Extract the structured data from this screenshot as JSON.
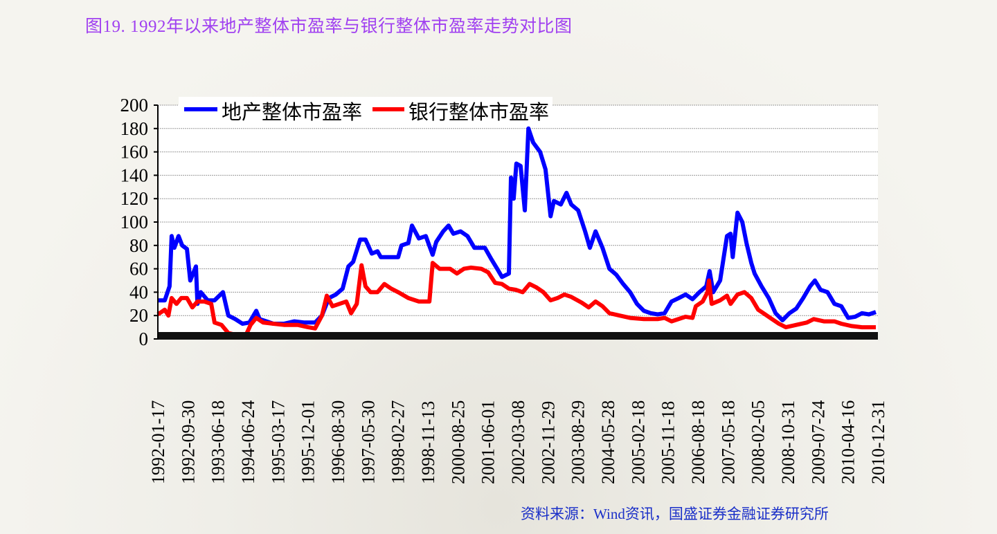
{
  "title": "图19. 1992年以来地产整体市盈率与银行整体市盈率走势对比图",
  "source": "资料来源：Wind资讯，国盛证券金融证券研究所",
  "chart_data": {
    "type": "line",
    "title": "图19. 1992年以来地产整体市盈率与银行整体市盈率走势对比图",
    "xlabel": "",
    "ylabel": "",
    "ylim": [
      0,
      200
    ],
    "yticks": [
      "0",
      "20",
      "40",
      "60",
      "80",
      "100",
      "120",
      "140",
      "160",
      "180",
      "200"
    ],
    "grid": true,
    "legend_position": "top",
    "x_unit": "category tick index (0 = first tick label, 24 = last)",
    "categories": [
      "1992-01-17",
      "1992-09-30",
      "1993-06-18",
      "1994-06-24",
      "1995-03-17",
      "1995-12-01",
      "1996-08-30",
      "1997-05-30",
      "1998-02-27",
      "1998-11-13",
      "2000-08-25",
      "2001-06-01",
      "2002-03-08",
      "2002-11-29",
      "2003-08-29",
      "2004-05-28",
      "2005-02-18",
      "2005-11-18",
      "2006-08-18",
      "2007-05-18",
      "2008-02-05",
      "2008-10-31",
      "2009-07-24",
      "2010-04-16",
      "2010-12-31"
    ],
    "series": [
      {
        "name": "地产整体市盈率",
        "color": "#0000ff",
        "points": [
          [
            0,
            33
          ],
          [
            0.23,
            33
          ],
          [
            0.39,
            45
          ],
          [
            0.46,
            88
          ],
          [
            0.55,
            78
          ],
          [
            0.69,
            88
          ],
          [
            0.81,
            80
          ],
          [
            0.97,
            77
          ],
          [
            1.08,
            50
          ],
          [
            1.27,
            62
          ],
          [
            1.32,
            30
          ],
          [
            1.43,
            40
          ],
          [
            1.66,
            33
          ],
          [
            1.89,
            33
          ],
          [
            2.17,
            40
          ],
          [
            2.35,
            20
          ],
          [
            2.58,
            17
          ],
          [
            2.82,
            13
          ],
          [
            3.05,
            14
          ],
          [
            3.28,
            24
          ],
          [
            3.39,
            17
          ],
          [
            3.62,
            15
          ],
          [
            3.85,
            13
          ],
          [
            4.2,
            13
          ],
          [
            4.55,
            15
          ],
          [
            4.89,
            14
          ],
          [
            5.24,
            14
          ],
          [
            5.47,
            20
          ],
          [
            5.7,
            35
          ],
          [
            5.93,
            38
          ],
          [
            6.16,
            43
          ],
          [
            6.35,
            62
          ],
          [
            6.51,
            66
          ],
          [
            6.74,
            85
          ],
          [
            6.92,
            85
          ],
          [
            7.13,
            73
          ],
          [
            7.32,
            75
          ],
          [
            7.43,
            70
          ],
          [
            7.66,
            70
          ],
          [
            8.01,
            70
          ],
          [
            8.12,
            80
          ],
          [
            8.35,
            82
          ],
          [
            8.47,
            97
          ],
          [
            8.7,
            86
          ],
          [
            8.93,
            88
          ],
          [
            9.16,
            72
          ],
          [
            9.28,
            83
          ],
          [
            9.51,
            92
          ],
          [
            9.69,
            97
          ],
          [
            9.85,
            90
          ],
          [
            10.09,
            92
          ],
          [
            10.32,
            88
          ],
          [
            10.55,
            78
          ],
          [
            10.9,
            78
          ],
          [
            11.12,
            68
          ],
          [
            11.31,
            60
          ],
          [
            11.47,
            53
          ],
          [
            11.7,
            56
          ],
          [
            11.77,
            138
          ],
          [
            11.86,
            120
          ],
          [
            11.95,
            150
          ],
          [
            12.09,
            148
          ],
          [
            12.23,
            110
          ],
          [
            12.35,
            180
          ],
          [
            12.51,
            168
          ],
          [
            12.74,
            160
          ],
          [
            12.92,
            145
          ],
          [
            13.09,
            105
          ],
          [
            13.2,
            118
          ],
          [
            13.43,
            115
          ],
          [
            13.62,
            125
          ],
          [
            13.78,
            115
          ],
          [
            14.01,
            110
          ],
          [
            14.24,
            92
          ],
          [
            14.4,
            78
          ],
          [
            14.59,
            92
          ],
          [
            14.82,
            78
          ],
          [
            15.05,
            60
          ],
          [
            15.28,
            55
          ],
          [
            15.51,
            47
          ],
          [
            15.74,
            40
          ],
          [
            15.97,
            30
          ],
          [
            16.2,
            24
          ],
          [
            16.43,
            22
          ],
          [
            16.66,
            21
          ],
          [
            16.89,
            22
          ],
          [
            17.12,
            32
          ],
          [
            17.36,
            35
          ],
          [
            17.59,
            38
          ],
          [
            17.82,
            34
          ],
          [
            18.05,
            40
          ],
          [
            18.28,
            45
          ],
          [
            18.39,
            58
          ],
          [
            18.51,
            40
          ],
          [
            18.74,
            50
          ],
          [
            18.97,
            88
          ],
          [
            19.09,
            90
          ],
          [
            19.16,
            70
          ],
          [
            19.32,
            108
          ],
          [
            19.48,
            100
          ],
          [
            19.62,
            82
          ],
          [
            19.78,
            65
          ],
          [
            19.89,
            56
          ],
          [
            20.12,
            45
          ],
          [
            20.36,
            35
          ],
          [
            20.59,
            22
          ],
          [
            20.82,
            16
          ],
          [
            21.05,
            22
          ],
          [
            21.28,
            26
          ],
          [
            21.51,
            35
          ],
          [
            21.74,
            45
          ],
          [
            21.9,
            50
          ],
          [
            22.09,
            42
          ],
          [
            22.32,
            40
          ],
          [
            22.55,
            30
          ],
          [
            22.78,
            28
          ],
          [
            23.01,
            18
          ],
          [
            23.24,
            19
          ],
          [
            23.47,
            22
          ],
          [
            23.7,
            21
          ],
          [
            23.93,
            23
          ]
        ]
      },
      {
        "name": "银行整体市盈率",
        "color": "#ff0000",
        "points": [
          [
            0,
            21
          ],
          [
            0.23,
            25
          ],
          [
            0.35,
            20
          ],
          [
            0.46,
            35
          ],
          [
            0.62,
            30
          ],
          [
            0.78,
            35
          ],
          [
            0.97,
            35
          ],
          [
            1.15,
            27
          ],
          [
            1.32,
            32
          ],
          [
            1.55,
            32
          ],
          [
            1.78,
            30
          ],
          [
            1.89,
            14
          ],
          [
            2.12,
            12
          ],
          [
            2.35,
            5
          ],
          [
            2.7,
            3
          ],
          [
            2.93,
            3
          ],
          [
            3.09,
            12
          ],
          [
            3.28,
            18
          ],
          [
            3.51,
            14
          ],
          [
            3.85,
            13
          ],
          [
            4.2,
            12
          ],
          [
            4.66,
            12
          ],
          [
            5.01,
            10
          ],
          [
            5.24,
            9
          ],
          [
            5.47,
            20
          ],
          [
            5.63,
            37
          ],
          [
            5.82,
            28
          ],
          [
            6.05,
            30
          ],
          [
            6.28,
            32
          ],
          [
            6.44,
            22
          ],
          [
            6.63,
            30
          ],
          [
            6.79,
            63
          ],
          [
            6.92,
            45
          ],
          [
            7.09,
            40
          ],
          [
            7.32,
            40
          ],
          [
            7.55,
            47
          ],
          [
            7.78,
            43
          ],
          [
            8.01,
            40
          ],
          [
            8.35,
            35
          ],
          [
            8.7,
            32
          ],
          [
            9.05,
            32
          ],
          [
            9.16,
            65
          ],
          [
            9.39,
            60
          ],
          [
            9.74,
            60
          ],
          [
            9.97,
            56
          ],
          [
            10.2,
            60
          ],
          [
            10.43,
            61
          ],
          [
            10.78,
            60
          ],
          [
            11.01,
            57
          ],
          [
            11.24,
            48
          ],
          [
            11.47,
            47
          ],
          [
            11.7,
            43
          ],
          [
            11.93,
            42
          ],
          [
            12.16,
            40
          ],
          [
            12.39,
            47
          ],
          [
            12.62,
            44
          ],
          [
            12.85,
            40
          ],
          [
            13.09,
            33
          ],
          [
            13.32,
            35
          ],
          [
            13.55,
            38
          ],
          [
            13.78,
            36
          ],
          [
            14.13,
            31
          ],
          [
            14.36,
            27
          ],
          [
            14.59,
            32
          ],
          [
            14.82,
            28
          ],
          [
            15.05,
            22
          ],
          [
            15.39,
            20
          ],
          [
            15.74,
            18
          ],
          [
            16.2,
            17
          ],
          [
            16.66,
            17
          ],
          [
            16.89,
            18
          ],
          [
            17.12,
            15
          ],
          [
            17.59,
            19
          ],
          [
            17.82,
            18
          ],
          [
            17.93,
            28
          ],
          [
            18.16,
            32
          ],
          [
            18.32,
            40
          ],
          [
            18.37,
            50
          ],
          [
            18.46,
            30
          ],
          [
            18.74,
            33
          ],
          [
            18.97,
            37
          ],
          [
            19.09,
            30
          ],
          [
            19.32,
            38
          ],
          [
            19.55,
            40
          ],
          [
            19.78,
            35
          ],
          [
            20.01,
            25
          ],
          [
            20.24,
            21
          ],
          [
            20.47,
            17
          ],
          [
            20.7,
            13
          ],
          [
            20.93,
            10
          ],
          [
            21.28,
            12
          ],
          [
            21.63,
            14
          ],
          [
            21.86,
            17
          ],
          [
            22.2,
            15
          ],
          [
            22.55,
            15
          ],
          [
            22.78,
            13
          ],
          [
            23.13,
            11
          ],
          [
            23.47,
            10
          ],
          [
            23.93,
            10
          ]
        ]
      }
    ]
  }
}
